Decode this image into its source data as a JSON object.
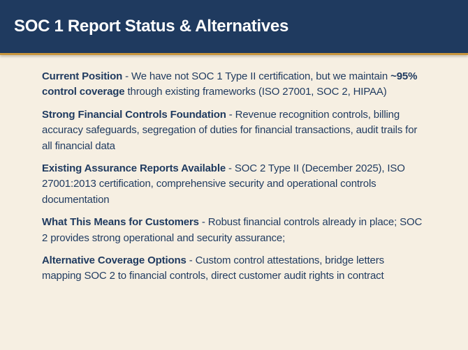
{
  "slide": {
    "title": "SOC 1 Report Status & Alternatives",
    "colors": {
      "header": "#1f3a5f",
      "accent_stripe": "#c8963e",
      "background": "#f6efe2",
      "text": "#1f3a5f"
    },
    "bullets": [
      {
        "label": "Current Position",
        "text_a": " - We have not SOC 1 Type II certification, but we maintain ",
        "emphasis": "~95% control coverage",
        "text_b": " through existing frameworks (ISO 27001, SOC 2, HIPAA)"
      },
      {
        "label": "Strong Financial Controls Foundation",
        "text": " - Revenue recognition controls, billing accuracy safeguards, segregation of duties for financial transactions, audit trails for all financial data"
      },
      {
        "label": "Existing Assurance Reports Available",
        "text": " - SOC 2 Type II (December 2025), ISO 27001:2013 certification, comprehensive security and operational controls documentation"
      },
      {
        "label": "What This Means for Customers",
        "text": " - Robust financial controls already in place; SOC 2 provides strong operational and security assurance;"
      },
      {
        "label": "Alternative Coverage Options",
        "text": " - Custom control attestations, bridge letters mapping SOC 2 to financial controls, direct customer audit rights in contract"
      }
    ]
  }
}
